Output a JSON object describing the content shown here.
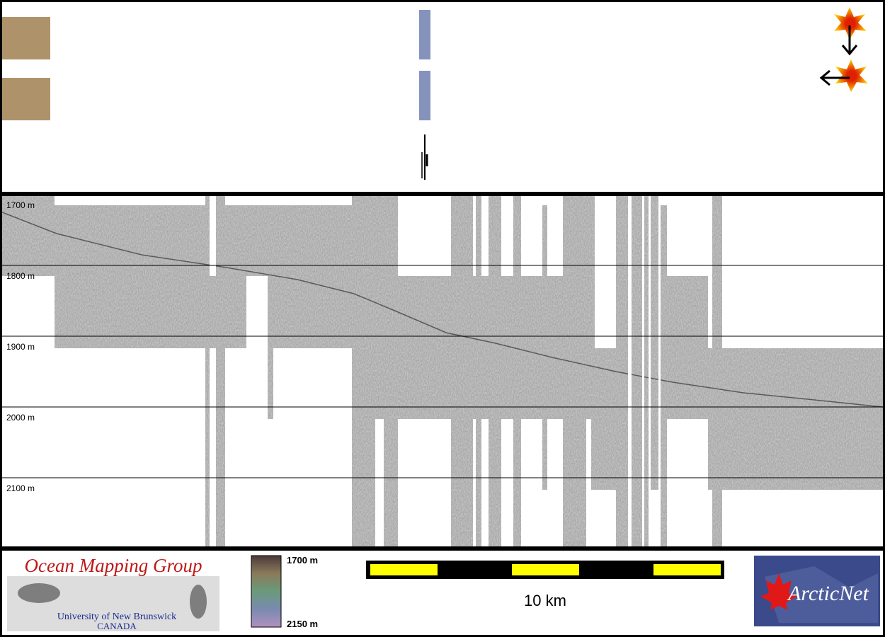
{
  "depth_scale": {
    "labels": [
      "1700 m",
      "1800 m",
      "1900 m",
      "2000 m",
      "2100 m"
    ]
  },
  "logo_left": {
    "title": "Ocean Mapping Group",
    "university": "University of New Brunswick",
    "country": "CANADA"
  },
  "color_bar": {
    "top_label": "1700 m",
    "bottom_label": "2150 m"
  },
  "scale_bar": {
    "label": "10 km"
  },
  "logo_right": {
    "text": "ArcticNet"
  }
}
